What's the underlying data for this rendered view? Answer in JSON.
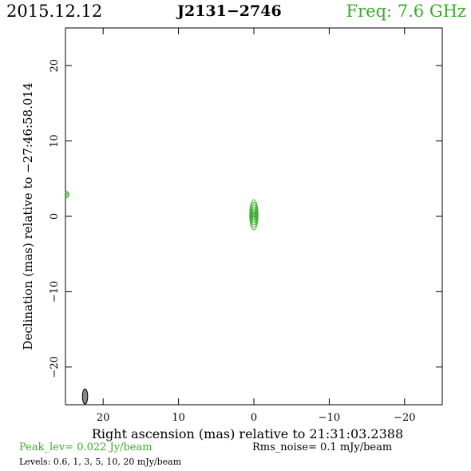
{
  "header": {
    "date": "2015.12.12",
    "source": "J2131−2746",
    "freq": "Freq: 7.6 GHz"
  },
  "footer": {
    "peak": "Peak_lev=  0.022 Jy/beam",
    "rms": "Rms_noise=  0.1 mJy/beam",
    "levels": "Levels: 0.6,   1,   3,   5,  10,  20 mJy/beam"
  },
  "colors": {
    "contour": "#3aaa2a",
    "frame": "#000000",
    "beam": "#888888"
  },
  "chart_data": {
    "type": "contour",
    "xlabel": "Right ascension (mas) relative to 21:31:03.2388",
    "ylabel": "Declination (mas) relative to −27:46:58.014",
    "xlim": [
      25,
      -25
    ],
    "ylim": [
      -25,
      25
    ],
    "x_ticks": [
      20,
      10,
      0,
      -10,
      -20
    ],
    "x_tick_labels": [
      "20",
      "10",
      "0",
      "−10",
      "−20"
    ],
    "y_ticks": [
      -20,
      -10,
      0,
      10,
      20
    ],
    "y_tick_labels": [
      "−20",
      "−10",
      "0",
      "10",
      "20"
    ],
    "levels_mJy": [
      0.6,
      1,
      3,
      5,
      10,
      20
    ],
    "components": [
      {
        "x": 0,
        "y": 0.2,
        "ax": 0.55,
        "ay": 2.0,
        "n": 6
      },
      {
        "x": 24.8,
        "y": 2.9,
        "ax": 0.25,
        "ay": 0.4,
        "n": 2
      }
    ],
    "beam": {
      "x": 22.4,
      "y": -23.9,
      "ax": 0.35,
      "ay": 1.0
    }
  }
}
